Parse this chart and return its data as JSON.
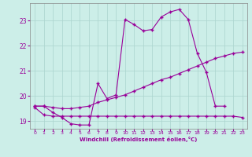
{
  "background_color": "#cceee8",
  "grid_color": "#aad4ce",
  "line_color": "#990099",
  "marker": "+",
  "xlabel": "Windchill (Refroidissement éolien,°C)",
  "xlim": [
    -0.5,
    23.5
  ],
  "ylim": [
    18.7,
    23.7
  ],
  "xticks": [
    0,
    1,
    2,
    3,
    4,
    5,
    6,
    7,
    8,
    9,
    10,
    11,
    12,
    13,
    14,
    15,
    16,
    17,
    18,
    19,
    20,
    21,
    22,
    23
  ],
  "yticks": [
    19,
    20,
    21,
    22,
    23
  ],
  "line1_x": [
    0,
    1,
    2,
    3,
    4,
    5,
    6,
    7,
    8,
    9,
    10,
    11,
    12,
    13,
    14,
    15,
    16,
    17,
    18,
    19,
    20,
    21
  ],
  "line1_y": [
    19.6,
    19.6,
    19.35,
    19.15,
    18.9,
    18.85,
    18.85,
    20.5,
    19.9,
    20.05,
    23.05,
    22.85,
    22.6,
    22.65,
    23.15,
    23.35,
    23.45,
    23.05,
    21.7,
    20.95,
    19.6,
    19.6
  ],
  "line2_x": [
    0,
    1,
    2,
    3,
    4,
    5,
    6,
    7,
    8,
    9,
    10,
    11,
    12,
    13,
    14,
    15,
    16,
    17,
    18,
    19,
    20,
    21,
    22,
    23
  ],
  "line2_y": [
    19.55,
    19.25,
    19.2,
    19.2,
    19.2,
    19.2,
    19.2,
    19.2,
    19.2,
    19.2,
    19.2,
    19.2,
    19.2,
    19.2,
    19.2,
    19.2,
    19.2,
    19.2,
    19.2,
    19.2,
    19.2,
    19.2,
    19.2,
    19.15
  ],
  "line3_x": [
    0,
    1,
    2,
    3,
    4,
    5,
    6,
    7,
    8,
    9,
    10,
    11,
    12,
    13,
    14,
    15,
    16,
    17,
    18,
    19,
    20,
    21,
    22,
    23
  ],
  "line3_y": [
    19.6,
    19.6,
    19.55,
    19.5,
    19.5,
    19.55,
    19.6,
    19.75,
    19.85,
    19.95,
    20.05,
    20.2,
    20.35,
    20.5,
    20.65,
    20.75,
    20.9,
    21.05,
    21.2,
    21.35,
    21.5,
    21.6,
    21.7,
    21.75
  ]
}
